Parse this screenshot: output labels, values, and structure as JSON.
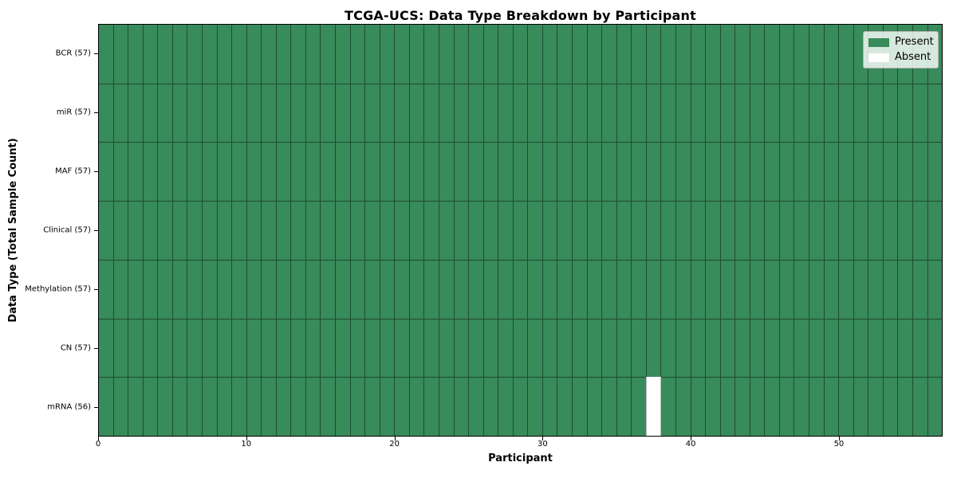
{
  "title": "TCGA-UCS: Data Type Breakdown by Participant",
  "xlabel": "Participant",
  "ylabel": "Data Type (Total Sample Count)",
  "colors": {
    "present": "#388b5a",
    "absent": "#ffffff",
    "grid_line": "#224b33",
    "spine": "#000000",
    "legend_border": "#b0b0b0"
  },
  "chart_data": {
    "type": "heatmap",
    "title": "TCGA-UCS: Data Type Breakdown by Participant",
    "xlabel": "Participant",
    "ylabel": "Data Type (Total Sample Count)",
    "n_participants": 57,
    "x_range": [
      0,
      57
    ],
    "x_ticks": [
      0,
      10,
      20,
      30,
      40,
      50
    ],
    "grid": true,
    "rows": [
      {
        "label": "BCR (57)",
        "data_type": "BCR",
        "total_samples": 57,
        "absent_participants": []
      },
      {
        "label": "miR (57)",
        "data_type": "miR",
        "total_samples": 57,
        "absent_participants": []
      },
      {
        "label": "MAF (57)",
        "data_type": "MAF",
        "total_samples": 57,
        "absent_participants": []
      },
      {
        "label": "Clinical (57)",
        "data_type": "Clinical",
        "total_samples": 57,
        "absent_participants": []
      },
      {
        "label": "Methylation (57)",
        "data_type": "Methylation",
        "total_samples": 57,
        "absent_participants": []
      },
      {
        "label": "CN (57)",
        "data_type": "CN",
        "total_samples": 57,
        "absent_participants": []
      },
      {
        "label": "mRNA (56)",
        "data_type": "mRNA",
        "total_samples": 56,
        "absent_participants": [
          37
        ]
      }
    ],
    "legend": [
      {
        "label": "Present",
        "color": "#388b5a"
      },
      {
        "label": "Absent",
        "color": "#ffffff"
      }
    ],
    "legend_position": "upper right"
  }
}
